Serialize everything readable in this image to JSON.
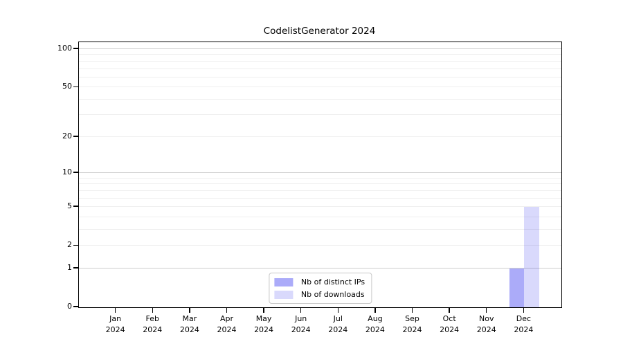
{
  "chart_data": {
    "type": "bar",
    "title": "CodelistGenerator 2024",
    "categories": [
      "Jan 2024",
      "Feb 2024",
      "Mar 2024",
      "Apr 2024",
      "May 2024",
      "Jun 2024",
      "Jul 2024",
      "Aug 2024",
      "Sep 2024",
      "Oct 2024",
      "Nov 2024",
      "Dec 2024"
    ],
    "series": [
      {
        "name": "Nb of distinct IPs",
        "color": "rgba(0,0,238,0.33)",
        "values": [
          0,
          0,
          0,
          0,
          0,
          0,
          0,
          0,
          0,
          0,
          0,
          1
        ]
      },
      {
        "name": "Nb of downloads",
        "color": "rgba(0,0,238,0.15)",
        "values": [
          0,
          0,
          0,
          0,
          0,
          0,
          0,
          0,
          0,
          0,
          0,
          5
        ]
      }
    ],
    "xlabel": "",
    "ylabel": "",
    "y_scale": "log1p",
    "ylim": [
      0,
      113
    ],
    "y_ticks": [
      0,
      1,
      2,
      5,
      10,
      20,
      50,
      100
    ],
    "minor_grid_values": [
      2,
      3,
      4,
      5,
      6,
      7,
      8,
      9,
      20,
      30,
      40,
      50,
      60,
      70,
      80,
      90
    ],
    "major_grid_values": [
      1,
      10,
      100
    ],
    "grid": "horizontal",
    "legend_position": "lower center"
  }
}
